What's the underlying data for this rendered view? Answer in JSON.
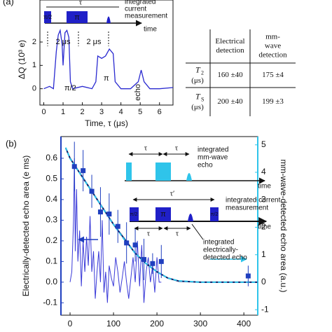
{
  "chart_data": [
    {
      "type": "line",
      "panel_label": "(a)",
      "x_label": "Time, τ (μs)",
      "y_label": "ΔQ (10³ e)",
      "xlim": [
        -0.2,
        6.7
      ],
      "ylim": [
        -0.7,
        3.8
      ],
      "xticks": [
        0,
        1,
        2,
        3,
        4,
        5,
        6
      ],
      "yticks": [
        0,
        1,
        2
      ],
      "color": "#2a2ad0",
      "x": [
        0,
        0.3,
        0.5,
        0.65,
        0.75,
        0.85,
        0.95,
        1.0,
        1.1,
        1.2,
        1.3,
        1.38,
        1.5,
        2.0,
        2.5,
        2.7,
        2.8,
        3.0,
        3.2,
        3.4,
        3.5,
        3.6,
        3.7,
        4.0,
        4.5,
        4.9,
        5.05,
        5.2,
        5.5,
        6.0,
        6.7
      ],
      "values": [
        0,
        0.1,
        0.0,
        1.6,
        2.3,
        2.5,
        1.9,
        1.0,
        2.4,
        2.5,
        2.2,
        0.3,
        0.0,
        0.1,
        0.0,
        0.3,
        1.4,
        1.3,
        1.4,
        1.7,
        1.6,
        1.5,
        0.3,
        0.0,
        0.0,
        0.3,
        0.8,
        0.3,
        0.0,
        0.0,
        0.05
      ],
      "annotations": [
        "π/2",
        "π",
        "echo"
      ],
      "pulse_sequence": {
        "tau": "τ",
        "pulse_1": "π/2",
        "pulse_2": "π",
        "detection": [
          "integrated",
          "current",
          "measurement"
        ],
        "time": "time",
        "interval_1": "2 μs",
        "interval_2": "2 μs"
      }
    },
    {
      "type": "scatter",
      "panel_label": "(b)",
      "y_label": "Electrically-detected echo area (e ms)",
      "y2_label": "mm-wave-detected echo area (a.u.)",
      "xlim": [
        -21,
        432
      ],
      "ylim": [
        -0.16,
        0.705
      ],
      "y2lim": [
        -1.2,
        5.3
      ],
      "xticks": [
        0,
        100,
        200,
        300,
        400
      ],
      "yticks": [
        -0.1,
        {
          "value": 0,
          "label": "0.0"
        },
        0.1,
        0.2,
        0.3,
        0.4,
        0.5,
        0.6
      ],
      "y2ticks": [
        -1,
        0,
        1,
        2,
        3,
        4,
        5
      ],
      "y2_color": "#2fc4ea",
      "points": {
        "color": "#1f3fbf",
        "x": [
          10,
          30,
          50,
          70,
          90,
          110,
          130,
          150,
          170,
          190,
          210,
          410
        ],
        "values": [
          0.56,
          0.54,
          0.44,
          0.34,
          0.33,
          0.27,
          0.19,
          0.18,
          0.11,
          0.09,
          0.1,
          0.03
        ],
        "errors": [
          0.12,
          0.1,
          0.08,
          0.12,
          0.1,
          0.08,
          0.1,
          0.08,
          0.1,
          0.05,
          0.08,
          0.05
        ]
      },
      "trace": {
        "color": "#3a3ad8",
        "x": [
          0,
          4,
          8,
          10,
          12,
          15,
          18,
          22,
          26,
          30,
          34,
          38,
          42,
          46,
          50,
          54,
          58,
          62,
          66,
          70,
          74,
          78,
          82,
          86,
          90,
          95,
          100,
          105,
          110,
          115,
          120,
          125,
          130,
          135,
          140,
          145,
          150,
          155,
          160,
          165,
          170,
          175,
          180,
          185,
          190,
          195,
          200,
          205,
          210
        ],
        "values": [
          0.0,
          0.05,
          0.3,
          0.6,
          0.15,
          0.45,
          0.1,
          0.25,
          -0.02,
          0.2,
          0.05,
          0.22,
          0.08,
          0.32,
          0.05,
          0.15,
          -0.08,
          0.05,
          0.15,
          0.0,
          0.3,
          -0.05,
          0.05,
          -0.1,
          0.08,
          0.02,
          -0.02,
          0.12,
          0.05,
          -0.05,
          0.02,
          0.1,
          0.0,
          -0.08,
          0.02,
          0.12,
          0.0,
          0.2,
          -0.02,
          0.18,
          -0.1,
          0.05,
          0.12,
          0.0,
          0.08,
          -0.05,
          0.12,
          0.0,
          0.0
        ]
      },
      "fit": {
        "color": "#0b1a66",
        "x": [
          -10,
          0,
          25,
          50,
          75,
          100,
          125,
          150,
          175,
          200,
          225,
          250,
          300,
          350,
          432
        ],
        "values": [
          0.65,
          0.6,
          0.52,
          0.44,
          0.36,
          0.28,
          0.21,
          0.14,
          0.09,
          0.05,
          0.02,
          0.005,
          0,
          0,
          0
        ]
      },
      "mm_wave_fit": {
        "color": "#2fc4ea",
        "axis": "y2",
        "x": [
          -10,
          0,
          25,
          50,
          75,
          100,
          125,
          150,
          175,
          200,
          225,
          250,
          300,
          350,
          432
        ],
        "values": [
          4.9,
          4.5,
          3.9,
          3.3,
          2.7,
          2.1,
          1.55,
          1.05,
          0.68,
          0.38,
          0.15,
          0.05,
          0,
          0,
          0
        ]
      },
      "mm_wave_sequence": {
        "tau_1": "τ",
        "tau_2": "τ",
        "detection": [
          "integrated",
          "mm-wave",
          "echo"
        ],
        "time": "time"
      },
      "electrical_sequence": {
        "tau_prime": "τ′",
        "pulse_1": "π/2",
        "pulse_2": "π",
        "pulse_3": "π/2",
        "tau_1": "τ",
        "tau_2": "τ",
        "time": "time",
        "detection": [
          "integrated current",
          "measurement"
        ],
        "echo": [
          "integrated",
          "electrically-",
          "detected echo"
        ]
      }
    }
  ],
  "table": {
    "header": [
      [
        "Electrical",
        "detection"
      ],
      [
        "mm-",
        "wave",
        "detection"
      ]
    ],
    "rows": [
      {
        "symbol": "T",
        "subscript": "2",
        "unit": "(μs)",
        "cells": [
          "160 ±40",
          "175 ±4"
        ]
      },
      {
        "symbol": "T",
        "subscript": "S",
        "unit": "(μs)",
        "cells": [
          "200 ±40",
          "199 ±3"
        ]
      }
    ]
  }
}
